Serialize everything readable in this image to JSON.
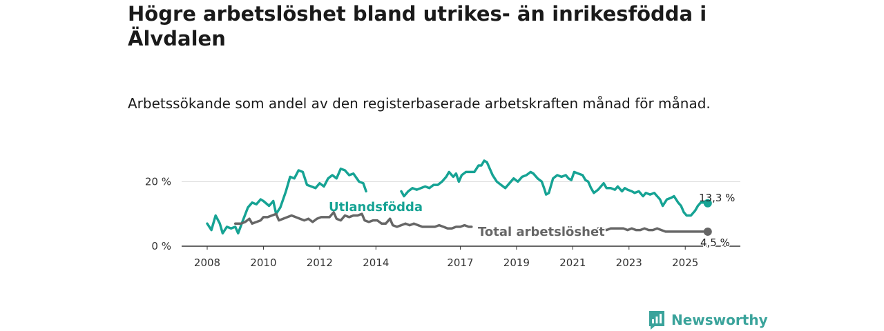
{
  "title": "Högre arbetslöshet bland utrikes- än inrikesfödda i Älvdalen",
  "subtitle": "Arbetssökande som andel av den registerbaserade arbetskraften månad för månad.",
  "brand": {
    "name": "Newsworthy",
    "icon": "newsworthy-logo-icon",
    "color": "#3aa39b"
  },
  "chart_data": {
    "type": "line",
    "title": "Högre arbetslöshet bland utrikes- än inrikesfödda i Älvdalen",
    "xlabel": "",
    "ylabel": "",
    "xlim": [
      2008,
      2026.1
    ],
    "ylim": [
      0,
      25
    ],
    "y_ticks": [
      0,
      20
    ],
    "y_tick_labels": [
      "0 %",
      "20 %"
    ],
    "x_ticks": [
      2008,
      2010,
      2012,
      2014,
      2017,
      2019,
      2021,
      2023,
      2025
    ],
    "grid": "horizontal",
    "series": [
      {
        "name": "Utlandsfödda",
        "color": "#16a394",
        "end_label": "13,3 %",
        "points": [
          [
            2008.0,
            7
          ],
          [
            2008.15,
            5
          ],
          [
            2008.3,
            9.5
          ],
          [
            2008.45,
            7
          ],
          [
            2008.55,
            4
          ],
          [
            2008.7,
            6
          ],
          [
            2008.85,
            5.5
          ],
          [
            2009.0,
            6
          ],
          [
            2009.1,
            4
          ],
          [
            2009.25,
            7.5
          ],
          [
            2009.45,
            12
          ],
          [
            2009.6,
            13.5
          ],
          [
            2009.75,
            13
          ],
          [
            2009.9,
            14.5
          ],
          [
            2010.0,
            14
          ],
          [
            2010.2,
            12.5
          ],
          [
            2010.35,
            14
          ],
          [
            2010.45,
            10
          ],
          [
            2010.6,
            12
          ],
          [
            2010.8,
            17
          ],
          [
            2010.95,
            21.5
          ],
          [
            2011.1,
            21
          ],
          [
            2011.25,
            23.5
          ],
          [
            2011.4,
            23
          ],
          [
            2011.55,
            19
          ],
          [
            2011.7,
            18.5
          ],
          [
            2011.85,
            18
          ],
          [
            2012.0,
            19.5
          ],
          [
            2012.15,
            18.5
          ],
          [
            2012.3,
            21
          ],
          [
            2012.45,
            22
          ],
          [
            2012.6,
            21
          ],
          [
            2012.75,
            24
          ],
          [
            2012.9,
            23.5
          ],
          [
            2013.05,
            22
          ],
          [
            2013.2,
            22.5
          ],
          [
            2013.4,
            20
          ],
          [
            2013.55,
            19.5
          ],
          [
            2013.65,
            17
          ],
          null,
          [
            2014.9,
            17
          ],
          [
            2015.0,
            15.5
          ],
          [
            2015.15,
            17
          ],
          [
            2015.3,
            18
          ],
          [
            2015.45,
            17.5
          ],
          [
            2015.6,
            18
          ],
          [
            2015.75,
            18.5
          ],
          [
            2015.9,
            18
          ],
          [
            2016.05,
            19
          ],
          [
            2016.2,
            19
          ],
          [
            2016.35,
            20
          ],
          [
            2016.5,
            21.5
          ],
          [
            2016.6,
            23
          ],
          [
            2016.75,
            21.5
          ],
          [
            2016.85,
            22.5
          ],
          [
            2016.95,
            20
          ],
          [
            2017.05,
            22
          ],
          [
            2017.2,
            23
          ],
          [
            2017.35,
            23
          ],
          [
            2017.5,
            23
          ],
          [
            2017.65,
            25
          ],
          [
            2017.75,
            25
          ],
          [
            2017.85,
            26.5
          ],
          [
            2017.95,
            26
          ],
          [
            2018.05,
            24
          ],
          [
            2018.15,
            22
          ],
          [
            2018.3,
            20
          ],
          [
            2018.45,
            19
          ],
          [
            2018.6,
            18
          ],
          [
            2018.75,
            19.5
          ],
          [
            2018.9,
            21
          ],
          [
            2019.05,
            20
          ],
          [
            2019.2,
            21.5
          ],
          [
            2019.35,
            22
          ],
          [
            2019.5,
            23
          ],
          [
            2019.6,
            22.5
          ],
          [
            2019.75,
            21
          ],
          [
            2019.9,
            20
          ],
          [
            2020.0,
            17.5
          ],
          [
            2020.05,
            16
          ],
          [
            2020.15,
            16.5
          ],
          [
            2020.3,
            21
          ],
          [
            2020.45,
            22
          ],
          [
            2020.6,
            21.5
          ],
          [
            2020.75,
            22
          ],
          [
            2020.85,
            21
          ],
          [
            2020.95,
            20.5
          ],
          [
            2021.05,
            23
          ],
          [
            2021.2,
            22.5
          ],
          [
            2021.35,
            22
          ],
          [
            2021.45,
            20.5
          ],
          [
            2021.55,
            20
          ],
          [
            2021.65,
            18
          ],
          [
            2021.75,
            16.5
          ],
          [
            2021.9,
            17.5
          ],
          [
            2022.0,
            18.5
          ],
          [
            2022.1,
            19.5
          ],
          [
            2022.2,
            18
          ],
          [
            2022.35,
            18
          ],
          [
            2022.5,
            17.5
          ],
          [
            2022.6,
            18.5
          ],
          [
            2022.75,
            17
          ],
          [
            2022.85,
            18
          ],
          [
            2022.95,
            17.5
          ],
          [
            2023.1,
            17
          ],
          [
            2023.2,
            16.5
          ],
          [
            2023.35,
            17
          ],
          [
            2023.5,
            15.5
          ],
          [
            2023.6,
            16.5
          ],
          [
            2023.75,
            16
          ],
          [
            2023.9,
            16.5
          ],
          [
            2024.0,
            15.5
          ],
          [
            2024.1,
            14.5
          ],
          [
            2024.2,
            12.5
          ],
          [
            2024.35,
            14.5
          ],
          [
            2024.5,
            15
          ],
          [
            2024.6,
            15.5
          ],
          [
            2024.75,
            13.5
          ],
          [
            2024.85,
            12.5
          ],
          [
            2024.95,
            10.5
          ],
          [
            2025.05,
            9.5
          ],
          [
            2025.2,
            9.5
          ],
          [
            2025.35,
            11
          ],
          [
            2025.45,
            12.5
          ],
          [
            2025.55,
            13.5
          ],
          [
            2025.7,
            13.5
          ],
          [
            2025.8,
            13.3
          ]
        ]
      },
      {
        "name": "Total arbetslöshet",
        "color": "#666666",
        "end_label": "4,5 %",
        "points": [
          [
            2009.0,
            7
          ],
          [
            2009.2,
            7
          ],
          [
            2009.35,
            7.5
          ],
          [
            2009.5,
            8.5
          ],
          [
            2009.6,
            7
          ],
          [
            2009.75,
            7.5
          ],
          [
            2009.9,
            8
          ],
          [
            2010.0,
            9
          ],
          [
            2010.15,
            9
          ],
          [
            2010.3,
            9.5
          ],
          [
            2010.45,
            10
          ],
          [
            2010.55,
            8
          ],
          [
            2010.7,
            8.5
          ],
          [
            2010.85,
            9
          ],
          [
            2011.0,
            9.5
          ],
          [
            2011.15,
            9
          ],
          [
            2011.3,
            8.5
          ],
          [
            2011.45,
            8
          ],
          [
            2011.6,
            8.5
          ],
          [
            2011.75,
            7.5
          ],
          [
            2011.9,
            8.5
          ],
          [
            2012.05,
            9
          ],
          [
            2012.2,
            9
          ],
          [
            2012.35,
            9
          ],
          [
            2012.5,
            10.5
          ],
          [
            2012.6,
            8.5
          ],
          [
            2012.75,
            8
          ],
          [
            2012.9,
            9.5
          ],
          [
            2013.05,
            9
          ],
          [
            2013.2,
            9.5
          ],
          [
            2013.35,
            9.5
          ],
          [
            2013.5,
            10
          ],
          [
            2013.6,
            8
          ],
          [
            2013.75,
            7.5
          ],
          [
            2013.9,
            8
          ],
          [
            2014.05,
            8
          ],
          [
            2014.2,
            7
          ],
          [
            2014.35,
            7
          ],
          [
            2014.5,
            8.5
          ],
          [
            2014.6,
            6.5
          ],
          [
            2014.75,
            6
          ],
          [
            2014.9,
            6.5
          ],
          [
            2015.05,
            7
          ],
          [
            2015.2,
            6.5
          ],
          [
            2015.35,
            7
          ],
          [
            2015.5,
            6.5
          ],
          [
            2015.65,
            6
          ],
          [
            2015.8,
            6
          ],
          [
            2015.95,
            6
          ],
          [
            2016.1,
            6
          ],
          [
            2016.25,
            6.5
          ],
          [
            2016.4,
            6
          ],
          [
            2016.55,
            5.5
          ],
          [
            2016.7,
            5.5
          ],
          [
            2016.85,
            6
          ],
          [
            2017.0,
            6
          ],
          [
            2017.15,
            6.5
          ],
          [
            2017.3,
            6
          ],
          [
            2017.4,
            6
          ],
          null,
          [
            2021.9,
            5.5
          ],
          [
            2022.05,
            5.5
          ],
          [
            2022.2,
            5
          ],
          [
            2022.35,
            5.5
          ],
          [
            2022.5,
            5.5
          ],
          [
            2022.65,
            5.5
          ],
          [
            2022.8,
            5.5
          ],
          [
            2022.95,
            5
          ],
          [
            2023.1,
            5.5
          ],
          [
            2023.25,
            5
          ],
          [
            2023.4,
            5
          ],
          [
            2023.55,
            5.5
          ],
          [
            2023.7,
            5
          ],
          [
            2023.85,
            5
          ],
          [
            2024.0,
            5.5
          ],
          [
            2024.15,
            5
          ],
          [
            2024.3,
            4.5
          ],
          [
            2024.45,
            4.5
          ],
          [
            2024.6,
            4.5
          ],
          [
            2024.75,
            4.5
          ],
          [
            2024.9,
            4.5
          ],
          [
            2025.05,
            4.5
          ],
          [
            2025.2,
            4.5
          ],
          [
            2025.35,
            4.5
          ],
          [
            2025.5,
            4.5
          ],
          [
            2025.65,
            4.5
          ],
          [
            2025.8,
            4.5
          ]
        ]
      }
    ]
  }
}
